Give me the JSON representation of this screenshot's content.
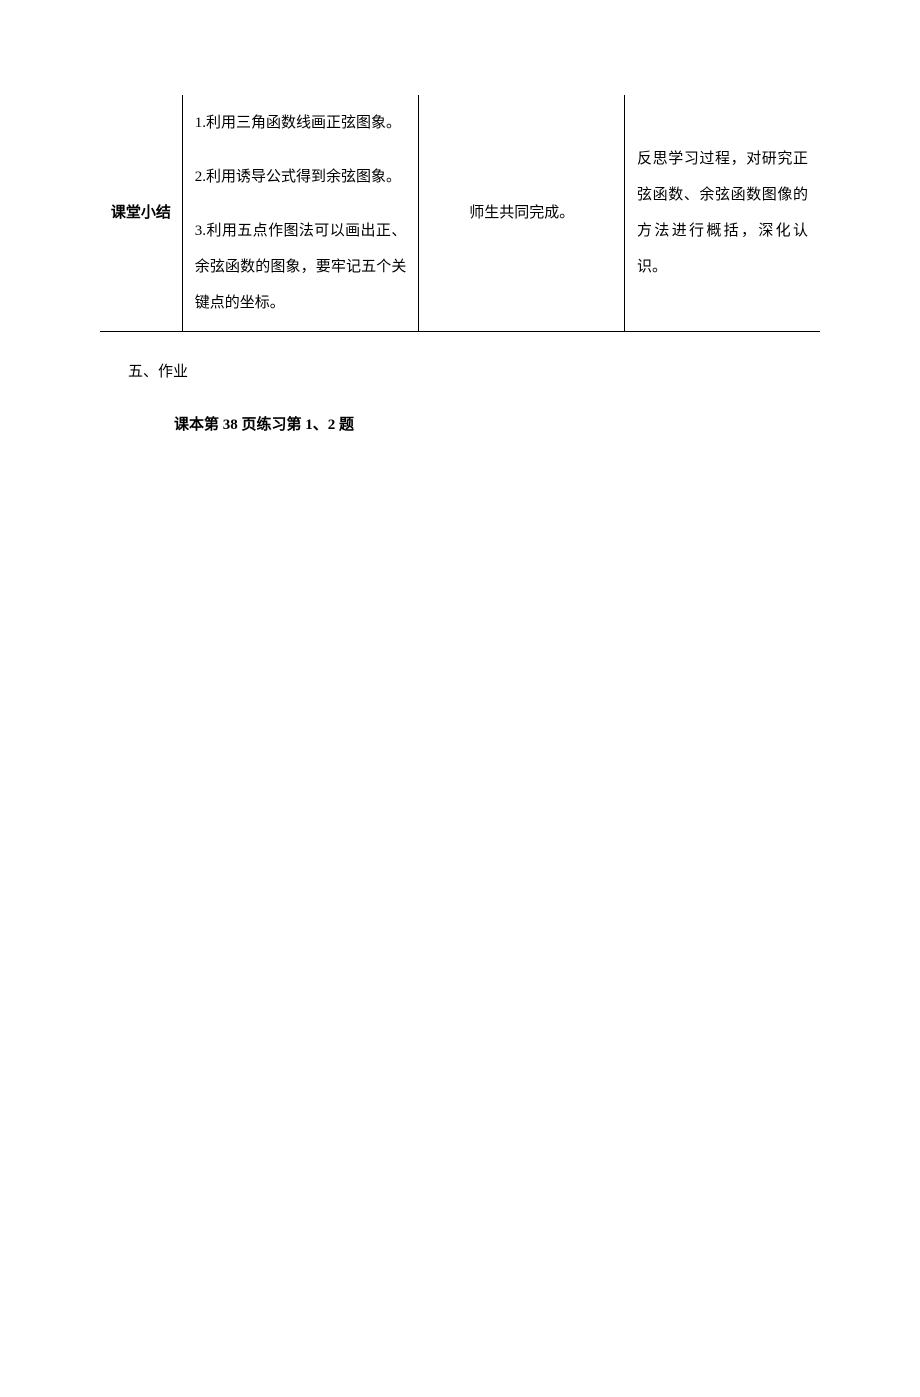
{
  "table": {
    "row_label": "课堂小结",
    "summary_points": {
      "p1": "1.利用三角函数线画正弦图象。",
      "p2": "2.利用诱导公式得到余弦图象。",
      "p3": "3.利用五点作图法可以画出正、余弦函数的图象，要牢记五个关键点的坐标。"
    },
    "activity": "师生共同完成。",
    "reflection": "反思学习过程，对研究正弦函数、余弦函数图像的方法进行概括，深化认识。"
  },
  "section": {
    "heading": "五、作业",
    "homework": "课本第 38 页练习第 1、2 题"
  }
}
